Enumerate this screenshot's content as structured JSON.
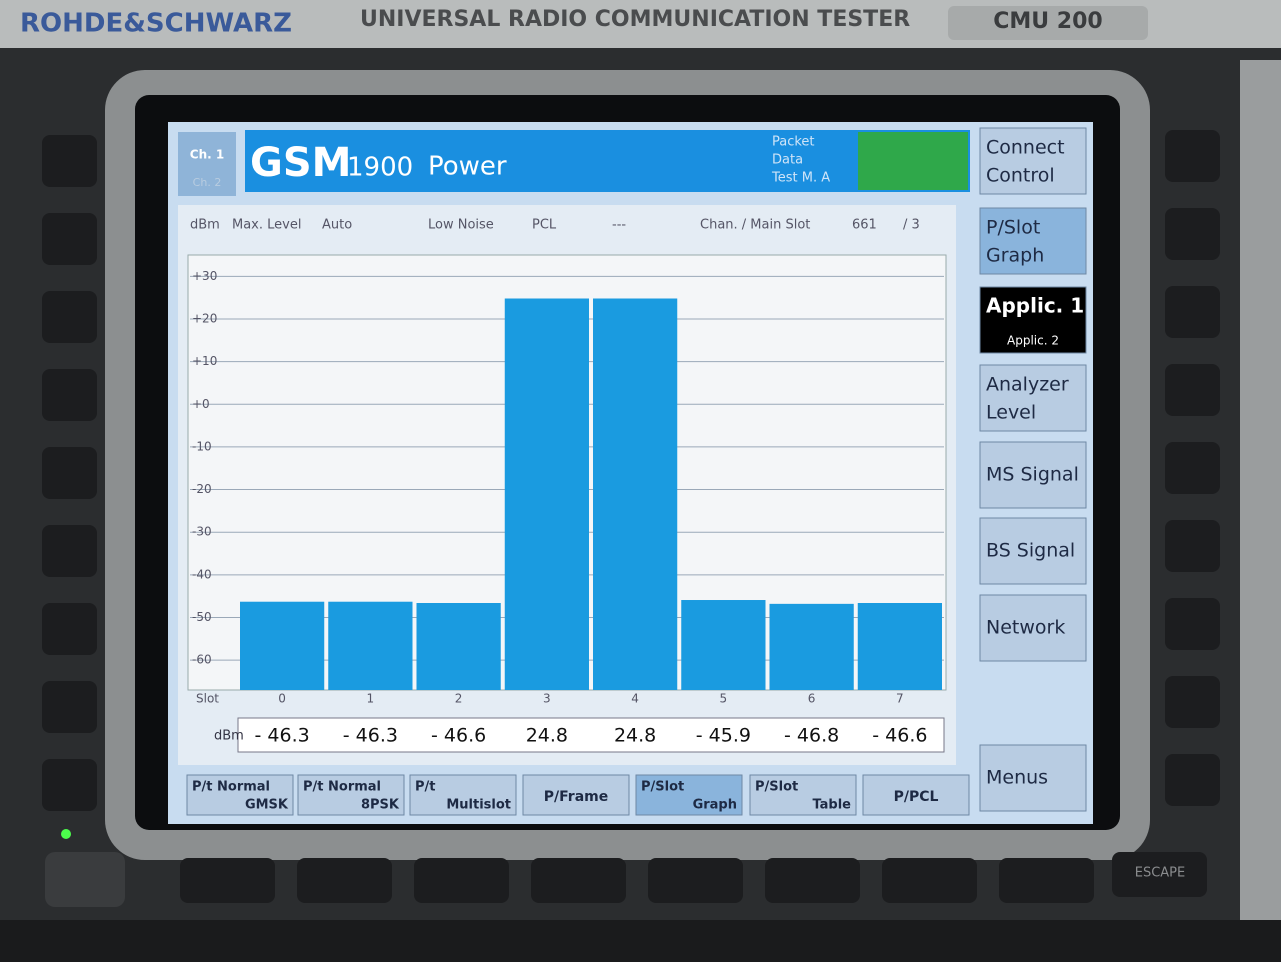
{
  "device": {
    "brand": "ROHDE&SCHWARZ",
    "product": "UNIVERSAL RADIO COMMUNICATION TESTER",
    "model": "CMU 200",
    "escape_key": "ESCAPE"
  },
  "header": {
    "channels": [
      "Ch. 1",
      "Ch. 2"
    ],
    "standard": "GSM",
    "band": "1900",
    "mode": "Power",
    "status": [
      "Packet",
      "Data",
      "Test M. A"
    ]
  },
  "settings": {
    "unit": "dBm",
    "level_label": "Max. Level",
    "level": "Auto",
    "noise": "Low Noise",
    "pcl_label": "PCL",
    "pcl": "---",
    "chan_label": "Chan. / Main Slot",
    "channel": "661",
    "slot": "/ 3"
  },
  "side_keys": [
    [
      "Connect",
      "Control"
    ],
    [
      "P/Slot",
      "Graph"
    ],
    [
      "Applic. 1",
      "Applic. 2"
    ],
    [
      "Analyzer",
      "Level"
    ],
    [
      "MS Signal"
    ],
    [
      "BS Signal"
    ],
    [
      "Network"
    ],
    [
      "Menus"
    ]
  ],
  "bottom_keys": [
    [
      "P/t Normal",
      "GMSK"
    ],
    [
      "P/t Normal",
      "8PSK"
    ],
    [
      "P/t",
      "Multislot"
    ],
    [
      "P/Frame"
    ],
    [
      "P/Slot",
      "Graph"
    ],
    [
      "P/Slot",
      "Table"
    ],
    [
      "P/PCL"
    ]
  ],
  "chart_data": {
    "type": "bar",
    "x_label": "Slot",
    "value_unit": "dBm",
    "categories": [
      "0",
      "1",
      "2",
      "3",
      "4",
      "5",
      "6",
      "7"
    ],
    "values": [
      -46.3,
      -46.3,
      -46.6,
      24.8,
      24.8,
      -45.9,
      -46.8,
      -46.6
    ],
    "value_labels": [
      "- 46.3",
      "- 46.3",
      "- 46.6",
      "24.8",
      "24.8",
      "- 45.9",
      "- 46.8",
      "- 46.6"
    ],
    "color": "#1a9be0",
    "ylim": [
      -67,
      35
    ],
    "yticks": [
      {
        "value": 30,
        "label": "+30"
      },
      {
        "value": 20,
        "label": "+20"
      },
      {
        "value": 10,
        "label": "+10"
      },
      {
        "value": 0,
        "label": "+0"
      },
      -10,
      -20,
      -30,
      -40,
      -50,
      -60
    ],
    "grid": true
  }
}
